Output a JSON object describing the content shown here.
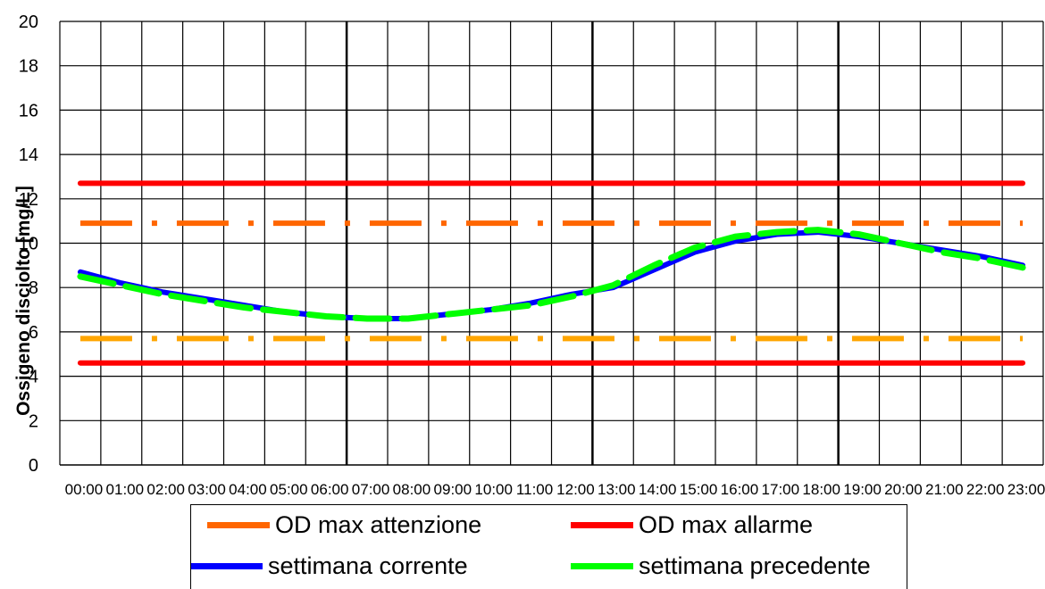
{
  "chart_data": {
    "type": "line",
    "title": "",
    "xlabel": "",
    "ylabel": "Ossigeno disciolto [mg/L]",
    "ylim": [
      0,
      20
    ],
    "yticks": [
      0,
      2,
      4,
      6,
      8,
      10,
      12,
      14,
      16,
      18,
      20
    ],
    "categories": [
      "00:00",
      "01:00",
      "02:00",
      "03:00",
      "04:00",
      "05:00",
      "06:00",
      "07:00",
      "08:00",
      "09:00",
      "10:00",
      "11:00",
      "12:00",
      "13:00",
      "14:00",
      "15:00",
      "16:00",
      "17:00",
      "18:00",
      "19:00",
      "20:00",
      "21:00",
      "22:00",
      "23:00"
    ],
    "grid": true,
    "legend_position": "bottom",
    "series": [
      {
        "name": "OD max attenzione",
        "color": "#FF6600",
        "style": "dash-dot",
        "values": [
          10.9,
          10.9,
          10.9,
          10.9,
          10.9,
          10.9,
          10.9,
          10.9,
          10.9,
          10.9,
          10.9,
          10.9,
          10.9,
          10.9,
          10.9,
          10.9,
          10.9,
          10.9,
          10.9,
          10.9,
          10.9,
          10.9,
          10.9,
          10.9
        ]
      },
      {
        "name": "OD max allarme",
        "color": "#FF0000",
        "style": "solid",
        "values": [
          12.7,
          12.7,
          12.7,
          12.7,
          12.7,
          12.7,
          12.7,
          12.7,
          12.7,
          12.7,
          12.7,
          12.7,
          12.7,
          12.7,
          12.7,
          12.7,
          12.7,
          12.7,
          12.7,
          12.7,
          12.7,
          12.7,
          12.7,
          12.7
        ]
      },
      {
        "name": "settimana corrente",
        "color": "#0000FF",
        "style": "solid",
        "values": [
          8.7,
          8.2,
          7.8,
          7.5,
          7.2,
          6.9,
          6.7,
          6.6,
          6.6,
          6.8,
          7.0,
          7.3,
          7.7,
          8.0,
          8.8,
          9.6,
          10.1,
          10.4,
          10.5,
          10.3,
          10.0,
          9.7,
          9.4,
          9.0
        ]
      },
      {
        "name": "settimana precedente",
        "color": "#00FF00",
        "style": "dashed",
        "values": [
          8.5,
          8.1,
          7.7,
          7.4,
          7.1,
          6.9,
          6.7,
          6.6,
          6.6,
          6.8,
          7.0,
          7.2,
          7.6,
          8.1,
          9.0,
          9.8,
          10.3,
          10.5,
          10.6,
          10.4,
          10.0,
          9.6,
          9.3,
          8.9
        ]
      },
      {
        "name": "",
        "color": "#FFA500",
        "style": "dash-dot",
        "values": [
          5.7,
          5.7,
          5.7,
          5.7,
          5.7,
          5.7,
          5.7,
          5.7,
          5.7,
          5.7,
          5.7,
          5.7,
          5.7,
          5.7,
          5.7,
          5.7,
          5.7,
          5.7,
          5.7,
          5.7,
          5.7,
          5.7,
          5.7,
          5.7
        ]
      },
      {
        "name": "",
        "color": "#FF0000",
        "style": "solid",
        "values": [
          4.6,
          4.6,
          4.6,
          4.6,
          4.6,
          4.6,
          4.6,
          4.6,
          4.6,
          4.6,
          4.6,
          4.6,
          4.6,
          4.6,
          4.6,
          4.6,
          4.6,
          4.6,
          4.6,
          4.6,
          4.6,
          4.6,
          4.6,
          4.6
        ]
      }
    ],
    "legend": [
      {
        "label": "OD max attenzione",
        "color": "#FF6600"
      },
      {
        "label": "OD max allarme",
        "color": "#FF0000"
      },
      {
        "label": "settimana corrente",
        "color": "#0000FF"
      },
      {
        "label": "settimana precedente",
        "color": "#00FF00"
      }
    ]
  }
}
